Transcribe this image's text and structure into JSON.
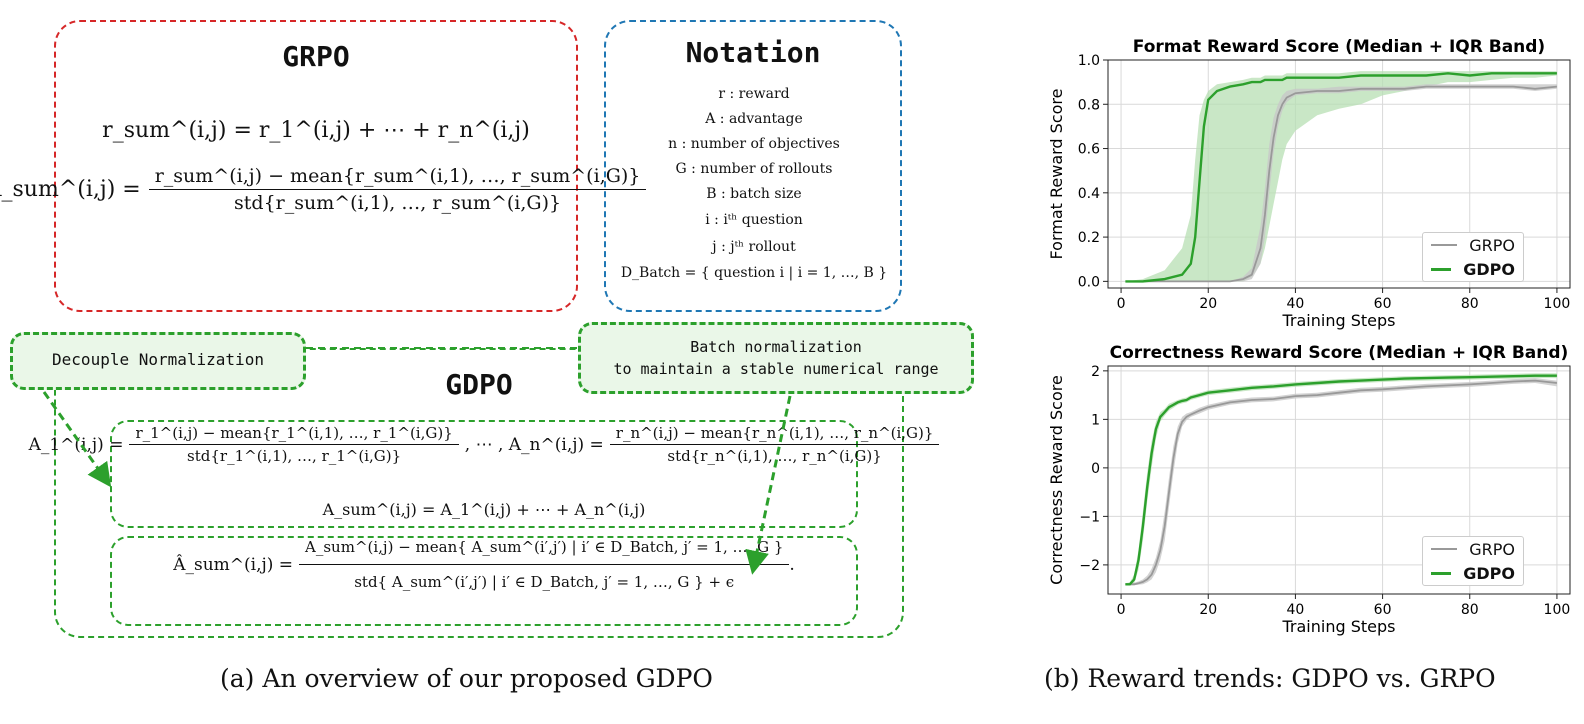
{
  "grpo_box": {
    "title": "GRPO",
    "eq1": "r_sum^(i,j) = r_1^(i,j) + ⋯ + r_n^(i,j)",
    "eq2_lhs": "A_sum^(i,j) =",
    "eq2_num": "r_sum^(i,j) − mean{r_sum^(i,1), …, r_sum^(i,G)}",
    "eq2_den": "std{r_sum^(i,1), …, r_sum^(i,G)}"
  },
  "notation_box": {
    "title": "Notation",
    "items": [
      "r : reward",
      "A : advantage",
      "n : number of objectives",
      "G : number of rollouts",
      "B : batch size",
      "i : iᵗʰ question",
      "j : jᵗʰ rollout",
      "D_Batch = { question i | i = 1, …, B }"
    ]
  },
  "gdpo_box": {
    "title": "GDPO",
    "callout_left": "Decouple Normalization",
    "callout_right_line1": "Batch normalization",
    "callout_right_line2": "to maintain a stable numerical range",
    "eq_a1_lhs": "A_1^(i,j) =",
    "eq_a1_num": "r_1^(i,j) − mean{r_1^(i,1), …, r_1^(i,G)}",
    "eq_a1_den": "std{r_1^(i,1), …, r_1^(i,G)}",
    "eq_mid": ", ⋯ , A_n^(i,j) =",
    "eq_an_num": "r_n^(i,j) − mean{r_n^(i,1), …, r_n^(i,G)}",
    "eq_an_den": "std{r_n^(i,1), …, r_n^(i,G)}",
    "eq_sum": "A_sum^(i,j) = A_1^(i,j) + ⋯ + A_n^(i,j)",
    "eq_hat_lhs": "Â_sum^(i,j) =",
    "eq_hat_num": "A_sum^(i,j) − mean{ A_sum^(i′,j′) | i′ ∈ D_Batch, j′ = 1, …, G }",
    "eq_hat_den": "std{ A_sum^(i′,j′) | i′ ∈ D_Batch, j′ = 1, …, G } + ϵ",
    "eq_hat_end": "."
  },
  "captions": {
    "left": "(a) An overview of our proposed GDPO",
    "right": "(b) Reward trends: GDPO vs. GRPO"
  },
  "colors": {
    "red": "#d62728",
    "blue": "#1f77b4",
    "green": "#2ca02c",
    "grpo_line": "#999999",
    "band_green": "#b7dfb3",
    "band_gray": "#c8c8c8"
  },
  "chart_data": [
    {
      "type": "line",
      "title": "Format Reward Score (Median + IQR Band)",
      "xlabel": "Training Steps",
      "ylabel": "Format Reward Score",
      "xlim": [
        -3,
        103
      ],
      "ylim": [
        -0.03,
        1.0
      ],
      "xticks": [
        0,
        20,
        40,
        60,
        80,
        100
      ],
      "xtick_labels": [
        "0",
        "20",
        "40",
        "60",
        "80",
        "100"
      ],
      "yticks": [
        0.0,
        0.2,
        0.4,
        0.6,
        0.8,
        1.0
      ],
      "ytick_labels": [
        "0.0",
        "0.2",
        "0.4",
        "0.6",
        "0.8",
        "1.0"
      ],
      "grid": true,
      "legend": "bottom-right",
      "x": [
        1,
        5,
        10,
        14,
        16,
        17,
        18,
        19,
        20,
        22,
        25,
        28,
        30,
        32,
        33,
        34,
        35,
        36,
        37,
        38,
        40,
        45,
        50,
        55,
        60,
        65,
        70,
        75,
        80,
        85,
        90,
        95,
        100
      ],
      "series": [
        {
          "name": "GRPO",
          "values": [
            0.0,
            0.0,
            0.0,
            0.0,
            0.0,
            0.0,
            0.0,
            0.0,
            0.0,
            0.0,
            0.0,
            0.01,
            0.03,
            0.15,
            0.3,
            0.5,
            0.65,
            0.75,
            0.8,
            0.83,
            0.85,
            0.86,
            0.86,
            0.87,
            0.87,
            0.87,
            0.88,
            0.88,
            0.88,
            0.88,
            0.88,
            0.87,
            0.88
          ],
          "q1": [
            0.0,
            0.0,
            0.0,
            0.0,
            0.0,
            0.0,
            0.0,
            0.0,
            0.0,
            0.0,
            0.0,
            0.0,
            0.01,
            0.08,
            0.2,
            0.4,
            0.58,
            0.7,
            0.77,
            0.81,
            0.84,
            0.85,
            0.85,
            0.86,
            0.86,
            0.86,
            0.87,
            0.87,
            0.87,
            0.87,
            0.87,
            0.86,
            0.87
          ],
          "q3": [
            0.0,
            0.0,
            0.0,
            0.0,
            0.0,
            0.0,
            0.0,
            0.0,
            0.0,
            0.0,
            0.0,
            0.02,
            0.06,
            0.25,
            0.42,
            0.62,
            0.74,
            0.8,
            0.84,
            0.86,
            0.87,
            0.87,
            0.88,
            0.88,
            0.88,
            0.88,
            0.89,
            0.89,
            0.89,
            0.89,
            0.89,
            0.89,
            0.89
          ]
        },
        {
          "name": "GDPO",
          "values": [
            0.0,
            0.0,
            0.01,
            0.03,
            0.08,
            0.2,
            0.45,
            0.7,
            0.82,
            0.86,
            0.88,
            0.89,
            0.9,
            0.9,
            0.91,
            0.91,
            0.91,
            0.91,
            0.91,
            0.92,
            0.92,
            0.92,
            0.92,
            0.93,
            0.93,
            0.93,
            0.93,
            0.94,
            0.93,
            0.94,
            0.94,
            0.94,
            0.94
          ],
          "q1": [
            0.0,
            0.0,
            0.0,
            0.0,
            0.0,
            0.0,
            0.0,
            0.0,
            0.0,
            0.0,
            0.0,
            0.0,
            0.02,
            0.08,
            0.15,
            0.25,
            0.35,
            0.45,
            0.55,
            0.62,
            0.68,
            0.75,
            0.78,
            0.8,
            0.84,
            0.86,
            0.88,
            0.9,
            0.9,
            0.91,
            0.92,
            0.92,
            0.93
          ],
          "q3": [
            0.0,
            0.01,
            0.05,
            0.15,
            0.3,
            0.55,
            0.75,
            0.82,
            0.86,
            0.89,
            0.9,
            0.91,
            0.92,
            0.92,
            0.93,
            0.93,
            0.93,
            0.93,
            0.93,
            0.94,
            0.94,
            0.94,
            0.94,
            0.95,
            0.95,
            0.95,
            0.95,
            0.95,
            0.95,
            0.95,
            0.95,
            0.95,
            0.95
          ]
        }
      ]
    },
    {
      "type": "line",
      "title": "Correctness Reward Score (Median + IQR Band)",
      "xlabel": "Training Steps",
      "ylabel": "Correctness Reward Score",
      "xlim": [
        -3,
        103
      ],
      "ylim": [
        -2.6,
        2.1
      ],
      "xticks": [
        0,
        20,
        40,
        60,
        80,
        100
      ],
      "xtick_labels": [
        "0",
        "20",
        "40",
        "60",
        "80",
        "100"
      ],
      "yticks": [
        -2,
        -1,
        0,
        1,
        2
      ],
      "ytick_labels": [
        "−2",
        "−1",
        "0",
        "1",
        "2"
      ],
      "grid": true,
      "legend": "bottom-right",
      "x": [
        1,
        2,
        3,
        4,
        5,
        6,
        7,
        8,
        9,
        10,
        11,
        12,
        13,
        14,
        15,
        16,
        18,
        20,
        25,
        30,
        35,
        40,
        45,
        50,
        55,
        60,
        65,
        70,
        75,
        80,
        85,
        90,
        95,
        100
      ],
      "series": [
        {
          "name": "GRPO",
          "values": [
            -2.4,
            -2.4,
            -2.4,
            -2.38,
            -2.35,
            -2.3,
            -2.2,
            -2.0,
            -1.7,
            -1.2,
            -0.5,
            0.2,
            0.7,
            0.95,
            1.05,
            1.1,
            1.18,
            1.25,
            1.35,
            1.4,
            1.42,
            1.48,
            1.5,
            1.55,
            1.6,
            1.62,
            1.65,
            1.68,
            1.7,
            1.72,
            1.75,
            1.78,
            1.8,
            1.75
          ],
          "q1": [
            -2.42,
            -2.42,
            -2.42,
            -2.41,
            -2.4,
            -2.36,
            -2.3,
            -2.15,
            -1.9,
            -1.5,
            -0.8,
            -0.1,
            0.5,
            0.85,
            0.98,
            1.05,
            1.12,
            1.2,
            1.3,
            1.35,
            1.37,
            1.43,
            1.45,
            1.5,
            1.55,
            1.57,
            1.6,
            1.63,
            1.65,
            1.67,
            1.7,
            1.73,
            1.75,
            1.68
          ],
          "q3": [
            -2.38,
            -2.38,
            -2.37,
            -2.34,
            -2.3,
            -2.22,
            -2.08,
            -1.85,
            -1.5,
            -0.9,
            -0.2,
            0.45,
            0.85,
            1.05,
            1.12,
            1.15,
            1.24,
            1.3,
            1.4,
            1.45,
            1.47,
            1.53,
            1.55,
            1.6,
            1.65,
            1.67,
            1.7,
            1.73,
            1.75,
            1.77,
            1.8,
            1.83,
            1.85,
            1.8
          ]
        },
        {
          "name": "GDPO",
          "values": [
            -2.4,
            -2.4,
            -2.3,
            -1.9,
            -1.2,
            -0.4,
            0.3,
            0.8,
            1.05,
            1.15,
            1.25,
            1.3,
            1.35,
            1.38,
            1.4,
            1.45,
            1.5,
            1.55,
            1.6,
            1.65,
            1.68,
            1.72,
            1.75,
            1.78,
            1.8,
            1.82,
            1.84,
            1.85,
            1.86,
            1.87,
            1.88,
            1.89,
            1.9,
            1.9
          ],
          "q1": [
            -2.42,
            -2.42,
            -2.38,
            -2.1,
            -1.5,
            -0.7,
            0.0,
            0.6,
            0.95,
            1.08,
            1.18,
            1.24,
            1.3,
            1.33,
            1.35,
            1.4,
            1.45,
            1.5,
            1.55,
            1.6,
            1.63,
            1.67,
            1.7,
            1.73,
            1.75,
            1.77,
            1.79,
            1.8,
            1.81,
            1.82,
            1.83,
            1.84,
            1.85,
            1.85
          ],
          "q3": [
            -2.38,
            -2.36,
            -2.2,
            -1.7,
            -0.9,
            -0.1,
            0.55,
            0.95,
            1.15,
            1.22,
            1.32,
            1.36,
            1.4,
            1.43,
            1.45,
            1.5,
            1.55,
            1.6,
            1.65,
            1.7,
            1.73,
            1.77,
            1.8,
            1.83,
            1.85,
            1.87,
            1.89,
            1.9,
            1.91,
            1.92,
            1.93,
            1.94,
            1.95,
            1.95
          ]
        }
      ]
    }
  ]
}
